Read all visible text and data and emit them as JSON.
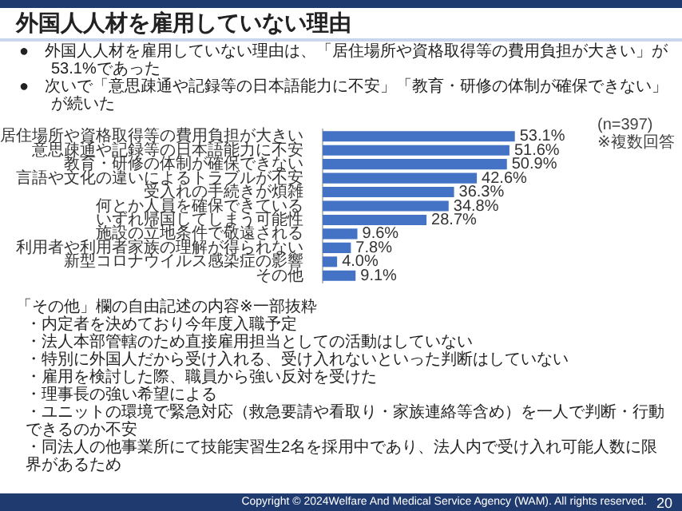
{
  "chart_data": {
    "type": "bar",
    "orientation": "horizontal",
    "title": "外国人人材を雇用していない理由",
    "categories": [
      "居住場所や資格取得等の費用負担が大きい",
      "意思疎通や記録等の日本語能力に不安",
      "教育・研修の体制が確保できない",
      "言語や文化の違いによるトラブルが不安",
      "受入れの手続きが煩雑",
      "何とか人員を確保できている",
      "いずれ帰国してしまう可能性",
      "施設の立地条件で敬遠される",
      "利用者や利用者家族の理解が得られない",
      "新型コロナウイルス感染症の影響",
      "その他"
    ],
    "values": [
      53.1,
      51.6,
      50.9,
      42.6,
      36.3,
      34.8,
      28.7,
      9.6,
      7.8,
      4.0,
      9.1
    ],
    "value_labels": [
      "53.1%",
      "51.6%",
      "50.9%",
      "42.6%",
      "36.3%",
      "34.8%",
      "28.7%",
      "9.6%",
      "7.8%",
      "4.0%",
      "9.1%"
    ],
    "color": "#4472c4",
    "legend": false,
    "annotations": [
      "●　外国人人材を雇用していない理由は、「居住場所や資格取得等の費用負担が大きい」が53.1%であった",
      "●　次いで「意思疎通や記録等の日本語能力に不安」「教育・研修の体制が確保できない」が続いた",
      "(n=397)",
      "※複数回答",
      "「その他」欄の自由記述の内容※一部抜粋",
      "・内定者を決めており今年度入職予定",
      "・法人本部管轄のため直接雇用担当としての活動はしていない",
      "・特別に外国人だから受け入れる、受け入れないといった判断はしていない",
      "・雇用を検討した際、職員から強い反対を受けた",
      "・理事長の強い希望による",
      "・ユニットの環境で緊急対応（救急要請や看取り・家族連絡等含め）を一人で判断・行動できるのか不安",
      "・同法人の他事業所にて技能実習生2名を採用中であり、法人内で受け入れ可能人数に限界があるため",
      "Copyright © 2024Welfare And Medical Service Agency (WAM). All rights reserved.",
      "20"
    ]
  }
}
